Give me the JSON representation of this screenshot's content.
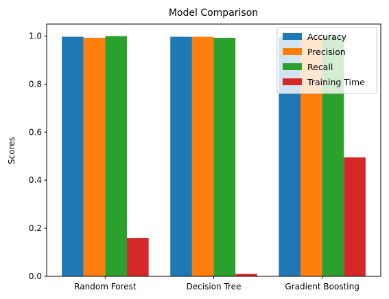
{
  "chart_data": {
    "type": "bar",
    "title": "Model Comparison",
    "xlabel": "",
    "ylabel": "Scores",
    "categories": [
      "Random Forest",
      "Decision Tree",
      "Gradient Boosting"
    ],
    "series": [
      {
        "name": "Accuracy",
        "color": "#1f77b4",
        "values": [
          0.997,
          0.997,
          0.996
        ]
      },
      {
        "name": "Precision",
        "color": "#ff7f0e",
        "values": [
          0.993,
          0.997,
          0.994
        ]
      },
      {
        "name": "Recall",
        "color": "#2ca02c",
        "values": [
          1.0,
          0.993,
          0.998
        ]
      },
      {
        "name": "Training Time",
        "color": "#d62728",
        "values": [
          0.16,
          0.01,
          0.495
        ]
      }
    ],
    "ylim": [
      0,
      1.05
    ],
    "yticks": [
      0.0,
      0.2,
      0.4,
      0.6,
      0.8,
      1.0
    ],
    "ytick_labels": [
      "0.0",
      "0.2",
      "0.4",
      "0.6",
      "0.8",
      "1.0"
    ],
    "legend_position": "upper-right",
    "grid": false
  }
}
